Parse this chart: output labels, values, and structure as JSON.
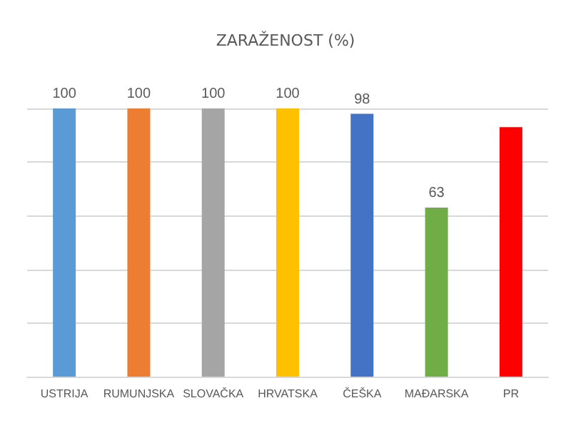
{
  "chart_data": {
    "type": "bar",
    "title": "ZARAŽENOST (%)",
    "categories": [
      "USTRIJA",
      "RUMUNJSKA",
      "SLOVAČKA",
      "HRVATSKA",
      "ČEŠKA",
      "MAĐARSKA",
      "PR"
    ],
    "values": [
      100,
      100,
      100,
      100,
      98,
      63,
      93
    ],
    "value_labels": [
      "100",
      "100",
      "100",
      "100",
      "98",
      "63",
      null
    ],
    "colors": [
      "#5b9bd5",
      "#ed7d31",
      "#a5a5a5",
      "#ffc000",
      "#4472c4",
      "#70ad47",
      "#ff0000"
    ],
    "ylim": [
      0,
      100
    ],
    "yticks": [
      {
        "value": 0,
        "label": null
      },
      {
        "value": 20,
        "label": null
      },
      {
        "value": 40,
        "label": null
      },
      {
        "value": 60,
        "label": null
      },
      {
        "value": 80,
        "label": null
      },
      {
        "value": 100,
        "label": null
      }
    ],
    "grid": true
  }
}
